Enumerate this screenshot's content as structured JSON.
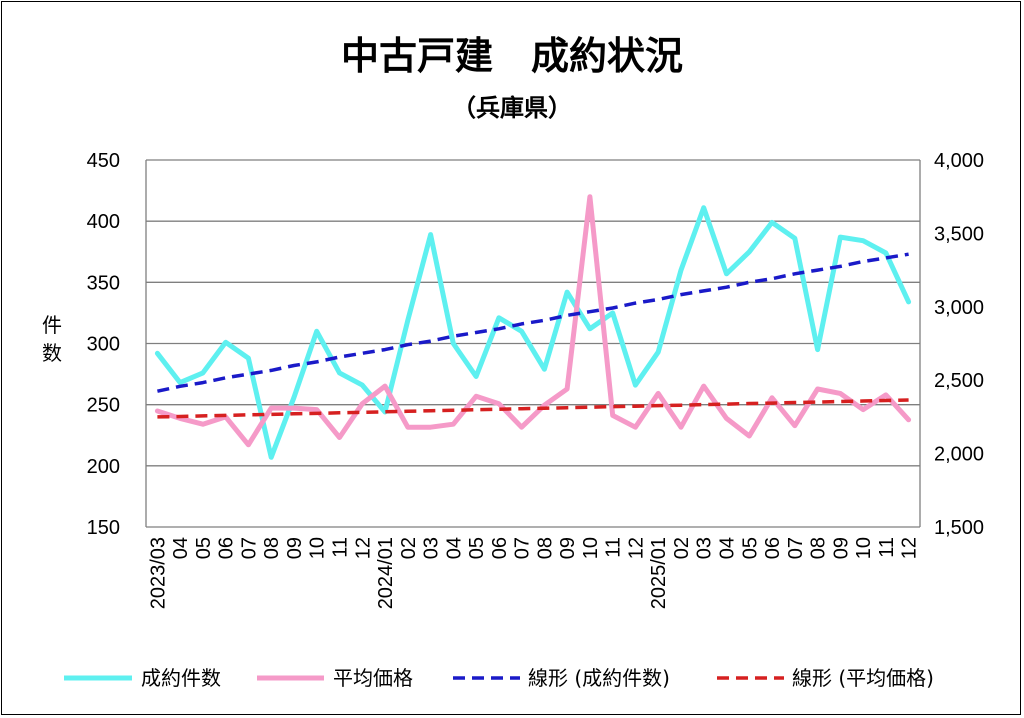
{
  "chart_data": {
    "type": "line",
    "title": "中古戸建　成約状況",
    "subtitle": "（兵庫県）",
    "ylabel_left": "件数",
    "ylabel_right": "",
    "x_tick_labels": [
      "2023/03",
      "04",
      "05",
      "06",
      "07",
      "08",
      "09",
      "10",
      "11",
      "12",
      "2024/01",
      "02",
      "03",
      "04",
      "05",
      "06",
      "07",
      "08",
      "09",
      "10",
      "11",
      "12",
      "2025/01",
      "02",
      "03",
      "04",
      "05",
      "06",
      "07",
      "08",
      "09",
      "10",
      "11",
      "12"
    ],
    "x": [
      "2023/03",
      "2023/04",
      "2023/05",
      "2023/06",
      "2023/07",
      "2023/08",
      "2023/09",
      "2023/10",
      "2023/11",
      "2023/12",
      "2024/01",
      "2024/02",
      "2024/03",
      "2024/04",
      "2024/05",
      "2024/06",
      "2024/07",
      "2024/08",
      "2024/09",
      "2024/10",
      "2024/11",
      "2024/12",
      "2025/01",
      "2025/02",
      "2025/03",
      "2025/04",
      "2025/05",
      "2025/06",
      "2025/07",
      "2025/08",
      "2025/09",
      "2025/10",
      "2025/11",
      "2025/12"
    ],
    "ylim_left": [
      150,
      450
    ],
    "ylim_right": [
      1500,
      4000
    ],
    "y_ticks_left": [
      "150",
      "200",
      "250",
      "300",
      "350",
      "400",
      "450"
    ],
    "y_ticks_right": [
      "1,500",
      "2,000",
      "2,500",
      "3,000",
      "3,500",
      "4,000"
    ],
    "grid": true,
    "legend_position": "bottom",
    "series": [
      {
        "name": "成約件数",
        "axis": "left",
        "color": "#5ef0f0",
        "style": "solid",
        "values": [
          292,
          268,
          276,
          301,
          288,
          207,
          256,
          310,
          276,
          266,
          244,
          319,
          389,
          300,
          273,
          321,
          310,
          279,
          342,
          312,
          325,
          266,
          293,
          360,
          411,
          357,
          375,
          399,
          386,
          295,
          387,
          384,
          374,
          334
        ]
      },
      {
        "name": "平均価格",
        "axis": "right",
        "color": "#f59ac8",
        "style": "solid",
        "values": [
          2290,
          2240,
          2200,
          2250,
          2060,
          2310,
          2310,
          2300,
          2110,
          2340,
          2460,
          2180,
          2180,
          2200,
          2390,
          2340,
          2180,
          2330,
          2440,
          3750,
          2260,
          2180,
          2410,
          2180,
          2460,
          2240,
          2120,
          2380,
          2190,
          2440,
          2410,
          2300,
          2400,
          2230
        ]
      },
      {
        "name": "線形 (成約件数)",
        "axis": "left",
        "color": "#1a1ac8",
        "style": "dashed",
        "values": [
          261,
          265,
          268,
          272,
          275,
          278,
          282,
          285,
          289,
          292,
          295,
          299,
          302,
          306,
          309,
          312,
          316,
          319,
          323,
          326,
          329,
          333,
          336,
          340,
          343,
          346,
          350,
          353,
          357,
          360,
          363,
          367,
          370,
          373
        ]
      },
      {
        "name": "線形 (平均価格)",
        "axis": "right",
        "color": "#d62020",
        "style": "dashed",
        "values": [
          2250,
          2253,
          2257,
          2260,
          2264,
          2267,
          2271,
          2274,
          2278,
          2281,
          2285,
          2288,
          2292,
          2295,
          2299,
          2302,
          2306,
          2309,
          2313,
          2316,
          2320,
          2323,
          2327,
          2330,
          2334,
          2337,
          2341,
          2344,
          2348,
          2351,
          2355,
          2358,
          2362,
          2365
        ]
      }
    ]
  }
}
